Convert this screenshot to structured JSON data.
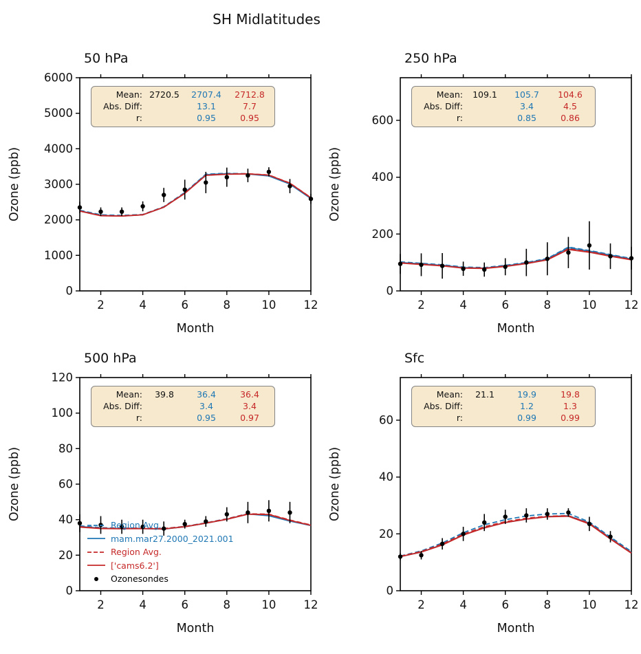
{
  "figure": {
    "title": "SH Midlatitudes"
  },
  "colors": {
    "model1": "#1f77b4",
    "model2": "#c62828",
    "obs": "#000000",
    "stats_bg": "#f6e9ce",
    "stats_border": "#848484"
  },
  "legend": [
    {
      "label": "Region Avg.",
      "color": "model1",
      "dash": true
    },
    {
      "label": "mam.mar27.2000_2021.001",
      "color": "model1",
      "dash": false
    },
    {
      "label": "Region Avg.",
      "color": "model2",
      "dash": true
    },
    {
      "label": "['cams6.2']",
      "color": "model2",
      "dash": false
    },
    {
      "label": "Ozonesondes",
      "color": "obs",
      "marker": "dot"
    }
  ],
  "chart_data": [
    {
      "type": "line",
      "title": "50 hPa",
      "xlabel": "Month",
      "ylabel": "Ozone (ppb)",
      "xlim": [
        1,
        12
      ],
      "ylim": [
        0,
        6000
      ],
      "xticks": [
        2,
        4,
        6,
        8,
        10,
        12
      ],
      "yticks": [
        0,
        1000,
        2000,
        3000,
        4000,
        5000,
        6000
      ],
      "months": [
        1,
        2,
        3,
        4,
        5,
        6,
        7,
        8,
        9,
        10,
        11,
        12
      ],
      "series": [
        {
          "name": "Region Avg. (mam)",
          "color": "model1",
          "dash": true,
          "values": [
            2270,
            2140,
            2125,
            2150,
            2370,
            2770,
            3285,
            3310,
            3295,
            3245,
            3015,
            2610
          ]
        },
        {
          "name": "mam.mar27.2000_2021.001",
          "color": "model1",
          "dash": false,
          "values": [
            2255,
            2125,
            2110,
            2140,
            2355,
            2755,
            3270,
            3300,
            3290,
            3235,
            3005,
            2600
          ]
        },
        {
          "name": "Region Avg. (cams)",
          "color": "model2",
          "dash": true,
          "values": [
            2250,
            2120,
            2108,
            2145,
            2360,
            2750,
            3258,
            3288,
            3298,
            3262,
            3035,
            2625
          ]
        },
        {
          "name": "['cams6.2']",
          "color": "model2",
          "dash": false,
          "values": [
            2245,
            2115,
            2105,
            2140,
            2355,
            2745,
            3252,
            3282,
            3294,
            3258,
            3030,
            2620
          ]
        }
      ],
      "obs": {
        "name": "Ozonesondes",
        "values": [
          2350,
          2230,
          2230,
          2380,
          2700,
          2850,
          3050,
          3200,
          3250,
          3350,
          2950,
          2590
        ],
        "err": [
          160,
          120,
          120,
          140,
          200,
          280,
          300,
          270,
          190,
          130,
          200,
          140
        ]
      },
      "stats": {
        "rows": [
          {
            "label": "Mean:",
            "obs": "2720.5",
            "m1": "2707.4",
            "m2": "2712.8"
          },
          {
            "label": "Abs. Diff:",
            "obs": "",
            "m1": "13.1",
            "m2": "7.7"
          },
          {
            "label": "r:",
            "obs": "",
            "m1": "0.95",
            "m2": "0.95"
          }
        ]
      },
      "show_legend": false
    },
    {
      "type": "line",
      "title": "250 hPa",
      "xlabel": "Month",
      "ylabel": "Ozone (ppb)",
      "xlim": [
        1,
        12
      ],
      "ylim": [
        0,
        750
      ],
      "xticks": [
        2,
        4,
        6,
        8,
        10,
        12
      ],
      "yticks": [
        0,
        200,
        400,
        600
      ],
      "months": [
        1,
        2,
        3,
        4,
        5,
        6,
        7,
        8,
        9,
        10,
        11,
        12
      ],
      "series": [
        {
          "name": "Region Avg. (mam)",
          "color": "model1",
          "dash": true,
          "values": [
            102,
            97,
            92,
            84,
            82,
            90,
            100,
            114,
            154,
            142,
            128,
            114
          ]
        },
        {
          "name": "mam.mar27.2000_2021.001",
          "color": "model1",
          "dash": false,
          "values": [
            100,
            95,
            90,
            82,
            80,
            88,
            98,
            112,
            152,
            140,
            126,
            112
          ]
        },
        {
          "name": "Region Avg. (cams)",
          "color": "model2",
          "dash": true,
          "values": [
            99,
            94,
            89,
            81,
            80,
            87,
            97,
            110,
            148,
            138,
            124,
            110
          ]
        },
        {
          "name": "['cams6.2']",
          "color": "model2",
          "dash": false,
          "values": [
            98,
            93,
            88,
            80,
            79,
            86,
            96,
            109,
            146,
            136,
            122,
            109
          ]
        }
      ],
      "obs": {
        "name": "Ozonesondes",
        "values": [
          95,
          92,
          88,
          78,
          75,
          85,
          100,
          113,
          135,
          160,
          122,
          115
        ],
        "err": [
          35,
          40,
          45,
          25,
          25,
          30,
          48,
          58,
          55,
          85,
          45,
          40
        ]
      },
      "stats": {
        "rows": [
          {
            "label": "Mean:",
            "obs": "109.1",
            "m1": "105.7",
            "m2": "104.6"
          },
          {
            "label": "Abs. Diff:",
            "obs": "",
            "m1": "3.4",
            "m2": "4.5"
          },
          {
            "label": "r:",
            "obs": "",
            "m1": "0.85",
            "m2": "0.86"
          }
        ]
      },
      "show_legend": false
    },
    {
      "type": "line",
      "title": "500 hPa",
      "xlabel": "Month",
      "ylabel": "Ozone (ppb)",
      "xlim": [
        1,
        12
      ],
      "ylim": [
        0,
        120
      ],
      "xticks": [
        2,
        4,
        6,
        8,
        10,
        12
      ],
      "yticks": [
        0,
        20,
        40,
        60,
        80,
        100,
        120
      ],
      "months": [
        1,
        2,
        3,
        4,
        5,
        6,
        7,
        8,
        9,
        10,
        11,
        12
      ],
      "series": [
        {
          "name": "Region Avg. (mam)",
          "color": "model1",
          "dash": true,
          "values": [
            36.5,
            35.5,
            35.2,
            35.2,
            35.0,
            36.2,
            38.2,
            40.5,
            43.4,
            42.4,
            39.4,
            36.9
          ]
        },
        {
          "name": "mam.mar27.2000_2021.001",
          "color": "model1",
          "dash": false,
          "values": [
            36.2,
            35.2,
            35.0,
            35.0,
            34.7,
            36.0,
            38.0,
            40.2,
            43.2,
            42.2,
            39.2,
            36.7
          ]
        },
        {
          "name": "Region Avg. (cams)",
          "color": "model2",
          "dash": true,
          "values": [
            36.0,
            35.2,
            35.1,
            35.2,
            35.0,
            36.1,
            38.1,
            40.4,
            43.3,
            43.1,
            39.8,
            37.0
          ]
        },
        {
          "name": "['cams6.2']",
          "color": "model2",
          "dash": false,
          "values": [
            35.8,
            35.0,
            34.9,
            35.0,
            34.8,
            36.0,
            38.0,
            40.2,
            43.1,
            42.9,
            39.6,
            36.8
          ]
        }
      ],
      "obs": {
        "name": "Ozonesondes",
        "values": [
          38,
          37,
          36,
          36,
          35,
          37.5,
          39,
          43,
          44,
          45,
          44,
          null
        ],
        "err": [
          5,
          5,
          4,
          4,
          4,
          2.5,
          3,
          4,
          6,
          6,
          6,
          null
        ]
      },
      "stats": {
        "rows": [
          {
            "label": "Mean:",
            "obs": "39.8",
            "m1": "36.4",
            "m2": "36.4"
          },
          {
            "label": "Abs. Diff:",
            "obs": "",
            "m1": "3.4",
            "m2": "3.4"
          },
          {
            "label": "r:",
            "obs": "",
            "m1": "0.95",
            "m2": "0.97"
          }
        ]
      },
      "show_legend": true
    },
    {
      "type": "line",
      "title": "Sfc",
      "xlabel": "Month",
      "ylabel": "Ozone (ppb)",
      "xlim": [
        1,
        12
      ],
      "ylim": [
        0,
        75
      ],
      "xticks": [
        2,
        4,
        6,
        8,
        10,
        12
      ],
      "yticks": [
        0,
        20,
        40,
        60
      ],
      "months": [
        1,
        2,
        3,
        4,
        5,
        6,
        7,
        8,
        9,
        10,
        11,
        12
      ],
      "series": [
        {
          "name": "Region Avg. (mam)",
          "color": "model1",
          "dash": true,
          "values": [
            12.2,
            14.0,
            16.8,
            20.4,
            23.2,
            25.0,
            26.3,
            27.0,
            27.2,
            24.2,
            18.9,
            13.8
          ]
        },
        {
          "name": "mam.mar27.2000_2021.001",
          "color": "model1",
          "dash": false,
          "values": [
            12.0,
            13.6,
            16.2,
            19.6,
            22.2,
            24.0,
            25.2,
            26.1,
            26.4,
            23.8,
            18.5,
            13.4
          ]
        },
        {
          "name": "Region Avg. (cams)",
          "color": "model2",
          "dash": true,
          "values": [
            12.1,
            13.8,
            16.4,
            19.9,
            22.5,
            24.3,
            25.5,
            26.2,
            26.4,
            23.7,
            18.4,
            13.3
          ]
        },
        {
          "name": "['cams6.2']",
          "color": "model2",
          "dash": false,
          "values": [
            12.0,
            13.6,
            16.1,
            19.6,
            22.1,
            24.0,
            25.2,
            26.0,
            26.2,
            23.5,
            18.2,
            13.2
          ]
        }
      ],
      "obs": {
        "name": "Ozonesondes",
        "values": [
          12.0,
          12.5,
          16.5,
          20.0,
          24.0,
          26.0,
          26.5,
          27.0,
          27.5,
          23.5,
          19.0,
          null
        ],
        "err": [
          1.2,
          1.5,
          2.0,
          2.5,
          3.0,
          2.5,
          2.5,
          2.0,
          1.5,
          2.5,
          2.0,
          null
        ]
      },
      "stats": {
        "rows": [
          {
            "label": "Mean:",
            "obs": "21.1",
            "m1": "19.9",
            "m2": "19.8"
          },
          {
            "label": "Abs. Diff:",
            "obs": "",
            "m1": "1.2",
            "m2": "1.3"
          },
          {
            "label": "r:",
            "obs": "",
            "m1": "0.99",
            "m2": "0.99"
          }
        ]
      },
      "show_legend": false
    }
  ]
}
